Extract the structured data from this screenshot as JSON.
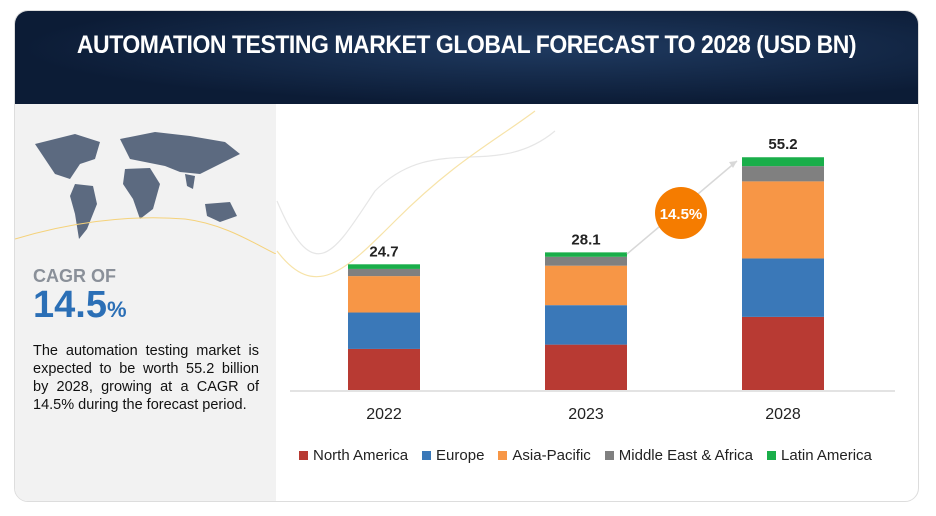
{
  "header": {
    "title": "AUTOMATION TESTING MARKET GLOBAL FORECAST TO 2028 (USD BN)"
  },
  "left_panel": {
    "cagr_label": "CAGR OF",
    "cagr_number": "14.5",
    "cagr_unit": "%",
    "description": "The automation testing market is expected to be worth 55.2 billion by 2028, growing at a CAGR of 14.5% during the forecast period."
  },
  "chart_data": {
    "type": "bar",
    "stacked": true,
    "title": "AUTOMATION TESTING MARKET GLOBAL FORECAST TO 2028 (USD BN)",
    "categories": [
      "2022",
      "2023",
      "2028"
    ],
    "totals": [
      24.7,
      28.1,
      55.2
    ],
    "total_labels": [
      "24.7",
      "28.1",
      "55.2"
    ],
    "series": [
      {
        "name": "North America",
        "color": "#b83a33",
        "values": [
          8.2,
          9.4,
          17.5
        ]
      },
      {
        "name": "Europe",
        "color": "#3a78b8",
        "values": [
          7.1,
          8.0,
          13.8
        ]
      },
      {
        "name": "Asia-Pacific",
        "color": "#f79646",
        "values": [
          7.1,
          8.0,
          18.2
        ]
      },
      {
        "name": "Middle East & Africa",
        "color": "#808080",
        "values": [
          1.4,
          1.8,
          3.6
        ]
      },
      {
        "name": "Latin America",
        "color": "#1aae4a",
        "values": [
          0.9,
          0.9,
          2.1
        ]
      }
    ],
    "annotation": "14.5%",
    "annotation_color": "#f57c00",
    "legend_position": "bottom",
    "grid": false
  }
}
